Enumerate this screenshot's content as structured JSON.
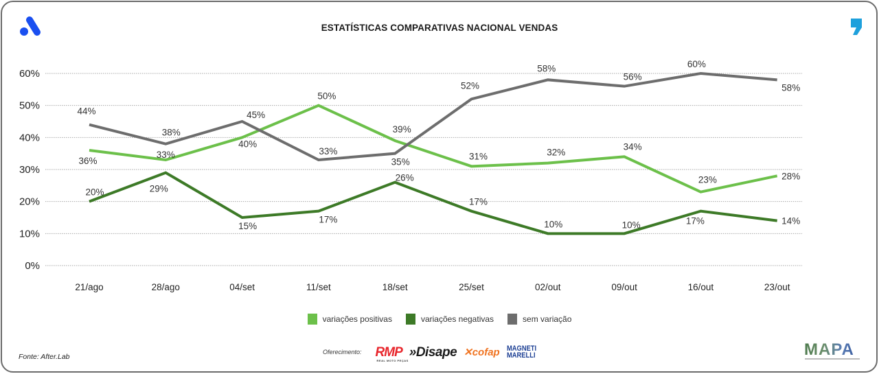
{
  "header": {
    "title": "ESTATÍSTICAS COMPARATIVAS NACIONAL VENDAS",
    "left_logo": "after-lab-a-logo",
    "right_logo": "comma-logo",
    "left_logo_color": "#1a4ff0",
    "right_logo_color": "#1ea0dc"
  },
  "chart_data": {
    "type": "line",
    "title": "ESTATÍSTICAS COMPARATIVAS NACIONAL VENDAS",
    "xlabel": "",
    "ylabel": "",
    "categories": [
      "21/ago",
      "28/ago",
      "04/set",
      "11/set",
      "18/set",
      "25/set",
      "02/out",
      "09/out",
      "16/out",
      "23/out"
    ],
    "ylim": [
      0,
      60
    ],
    "yticks": [
      0,
      10,
      20,
      30,
      40,
      50,
      60
    ],
    "ytick_labels": [
      "0%",
      "10%",
      "20%",
      "30%",
      "40%",
      "50%",
      "60%"
    ],
    "grid": "horizontal-dotted",
    "legend_position": "bottom-center",
    "series": [
      {
        "name": "variações positivas",
        "color": "#6cc04a",
        "values": [
          36,
          33,
          40,
          50,
          39,
          31,
          32,
          34,
          23,
          28
        ],
        "labels": [
          "36%",
          "33%",
          "40%",
          "50%",
          "39%",
          "31%",
          "32%",
          "34%",
          "23%",
          "28%"
        ]
      },
      {
        "name": "variações negativas",
        "color": "#3d7a27",
        "values": [
          20,
          29,
          15,
          17,
          26,
          17,
          10,
          10,
          17,
          14
        ],
        "labels": [
          "20%",
          "29%",
          "15%",
          "17%",
          "26%",
          "17%",
          "10%",
          "10%",
          "17%",
          "14%"
        ]
      },
      {
        "name": "sem variação",
        "color": "#6d6d6d",
        "values": [
          44,
          38,
          45,
          33,
          35,
          52,
          58,
          56,
          60,
          58
        ],
        "labels": [
          "44%",
          "38%",
          "45%",
          "33%",
          "35%",
          "52%",
          "58%",
          "56%",
          "60%",
          "58%"
        ]
      }
    ]
  },
  "legend": [
    {
      "label": "variações positivas",
      "color": "#6cc04a"
    },
    {
      "label": "variações negativas",
      "color": "#3d7a27"
    },
    {
      "label": "sem variação",
      "color": "#6d6d6d"
    }
  ],
  "footer": {
    "source": "Fonte: After.Lab",
    "sponsor_label": "Oferecimento:",
    "sponsors": {
      "rmp": "RMP",
      "rmp_sub": "REAL MOTO PEÇAS",
      "disape": "»Disape",
      "cofap": "cofap",
      "magneti_line1": "MAGNETI",
      "magneti_line2": "MARELLI"
    },
    "mapa": "MAPA"
  }
}
